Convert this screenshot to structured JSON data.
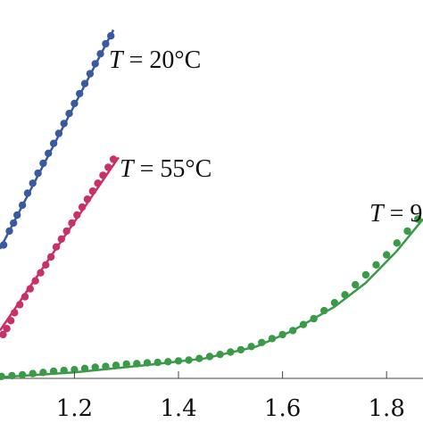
{
  "chart_data": {
    "type": "scatter",
    "xlim": [
      1.057,
      1.87
    ],
    "ylim": [
      0,
      0.95
    ],
    "grid": false,
    "x_ticks": [
      "1.2",
      "1.4",
      "1.6",
      "1.8"
    ],
    "series": [
      {
        "name": "T = 20°C",
        "label_var": "T",
        "label_rest": " = 20°C",
        "color": "#3a5aa0",
        "points": [
          [
            1.064,
            0.335
          ],
          [
            1.075,
            0.37
          ],
          [
            1.083,
            0.39
          ],
          [
            1.09,
            0.41
          ],
          [
            1.1,
            0.435
          ],
          [
            1.11,
            0.465
          ],
          [
            1.12,
            0.49
          ],
          [
            1.13,
            0.515
          ],
          [
            1.14,
            0.54
          ],
          [
            1.15,
            0.565
          ],
          [
            1.16,
            0.59
          ],
          [
            1.17,
            0.615
          ],
          [
            1.18,
            0.64
          ],
          [
            1.19,
            0.665
          ],
          [
            1.2,
            0.69
          ],
          [
            1.21,
            0.715
          ],
          [
            1.22,
            0.74
          ],
          [
            1.23,
            0.765
          ],
          [
            1.24,
            0.79
          ],
          [
            1.25,
            0.815
          ],
          [
            1.26,
            0.84
          ],
          [
            1.27,
            0.86
          ]
        ],
        "fit": [
          [
            1.057,
            0.325
          ],
          [
            1.275,
            0.875
          ]
        ]
      },
      {
        "name": "T = 55°C",
        "label_var": "T",
        "label_rest": " = 55°C",
        "color": "#c8306a",
        "points": [
          [
            1.063,
            0.11
          ],
          [
            1.07,
            0.125
          ],
          [
            1.078,
            0.145
          ],
          [
            1.085,
            0.165
          ],
          [
            1.095,
            0.185
          ],
          [
            1.105,
            0.205
          ],
          [
            1.115,
            0.225
          ],
          [
            1.125,
            0.245
          ],
          [
            1.135,
            0.265
          ],
          [
            1.145,
            0.285
          ],
          [
            1.155,
            0.305
          ],
          [
            1.165,
            0.33
          ],
          [
            1.175,
            0.35
          ],
          [
            1.185,
            0.37
          ],
          [
            1.195,
            0.39
          ],
          [
            1.205,
            0.41
          ],
          [
            1.215,
            0.43
          ],
          [
            1.225,
            0.45
          ],
          [
            1.235,
            0.47
          ],
          [
            1.245,
            0.49
          ],
          [
            1.255,
            0.51
          ],
          [
            1.265,
            0.53
          ],
          [
            1.275,
            0.55
          ]
        ],
        "fit": [
          [
            1.057,
            0.12
          ],
          [
            1.285,
            0.555
          ]
        ]
      },
      {
        "name": "T = 9",
        "label_var": "T",
        "label_rest": " = 9",
        "color": "#3a9a48",
        "points": [
          [
            1.06,
            0.005
          ],
          [
            1.08,
            0.007
          ],
          [
            1.1,
            0.009
          ],
          [
            1.12,
            0.012
          ],
          [
            1.14,
            0.015
          ],
          [
            1.16,
            0.018
          ],
          [
            1.18,
            0.02
          ],
          [
            1.2,
            0.022
          ],
          [
            1.22,
            0.025
          ],
          [
            1.24,
            0.028
          ],
          [
            1.26,
            0.03
          ],
          [
            1.28,
            0.033
          ],
          [
            1.3,
            0.036
          ],
          [
            1.32,
            0.037
          ],
          [
            1.34,
            0.039
          ],
          [
            1.36,
            0.04
          ],
          [
            1.38,
            0.042
          ],
          [
            1.4,
            0.044
          ],
          [
            1.42,
            0.046
          ],
          [
            1.44,
            0.05
          ],
          [
            1.46,
            0.055
          ],
          [
            1.48,
            0.06
          ],
          [
            1.5,
            0.066
          ],
          [
            1.52,
            0.072
          ],
          [
            1.54,
            0.08
          ],
          [
            1.56,
            0.09
          ],
          [
            1.58,
            0.1
          ],
          [
            1.6,
            0.11
          ],
          [
            1.62,
            0.12
          ],
          [
            1.64,
            0.135
          ],
          [
            1.66,
            0.15
          ],
          [
            1.68,
            0.17
          ],
          [
            1.7,
            0.19
          ],
          [
            1.72,
            0.21
          ],
          [
            1.74,
            0.235
          ],
          [
            1.76,
            0.26
          ],
          [
            1.78,
            0.285
          ],
          [
            1.8,
            0.31
          ],
          [
            1.82,
            0.34
          ],
          [
            1.84,
            0.37
          ],
          [
            1.86,
            0.4
          ]
        ],
        "fit": [
          [
            1.057,
            0.003
          ],
          [
            1.2,
            0.015
          ],
          [
            1.35,
            0.035
          ],
          [
            1.45,
            0.05
          ],
          [
            1.55,
            0.08
          ],
          [
            1.62,
            0.12
          ],
          [
            1.7,
            0.18
          ],
          [
            1.76,
            0.24
          ],
          [
            1.82,
            0.32
          ],
          [
            1.87,
            0.4
          ]
        ]
      }
    ]
  }
}
